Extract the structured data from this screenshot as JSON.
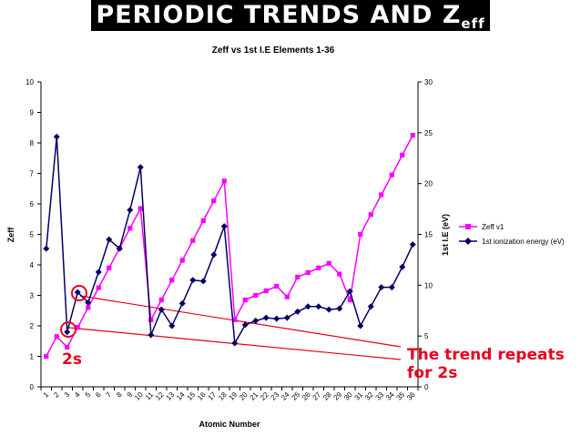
{
  "slide": {
    "title_main": "PERIODIC TRENDS AND Z",
    "title_sub": "eff",
    "annotation_2s": "2s",
    "annotation_trend_line1": "The trend repeats",
    "annotation_trend_line2": "for 2s",
    "accent_color": "#e8001c"
  },
  "chart_data": {
    "type": "line",
    "title": "Zeff vs 1st I.E Elements 1-36",
    "xlabel": "Atomic Number",
    "ylabel_left": "Zeff",
    "ylabel_right": "1st I.E (eV)",
    "ylim_left": [
      0,
      10
    ],
    "ylim_right": [
      0,
      30
    ],
    "yticks_left": [
      "0",
      "1",
      "2",
      "3",
      "4",
      "5",
      "6",
      "7",
      "8",
      "9",
      "10"
    ],
    "yticks_right": [
      "0",
      "5",
      "10",
      "15",
      "20",
      "25",
      "30"
    ],
    "categories": [
      "1",
      "2",
      "3",
      "4",
      "5",
      "6",
      "7",
      "8",
      "9",
      "10",
      "11",
      "12",
      "13",
      "14",
      "15",
      "16",
      "17",
      "18",
      "19",
      "20",
      "21",
      "22",
      "23",
      "24",
      "25",
      "26",
      "27",
      "28",
      "29",
      "30",
      "31",
      "32",
      "33",
      "34",
      "35",
      "36"
    ],
    "grid": false,
    "legend_position": "right",
    "series": [
      {
        "name": "Zeff v1",
        "axis": "left",
        "color": "#ff00ff",
        "marker": "square",
        "values": [
          1.0,
          1.65,
          1.3,
          1.95,
          2.6,
          3.25,
          3.9,
          4.55,
          5.2,
          5.85,
          2.2,
          2.85,
          3.5,
          4.15,
          4.8,
          5.45,
          6.1,
          6.75,
          2.2,
          2.85,
          3.0,
          3.15,
          3.3,
          2.95,
          3.6,
          3.75,
          3.9,
          4.05,
          3.7,
          2.85,
          5.0,
          5.65,
          6.3,
          6.95,
          7.6,
          8.25
        ]
      },
      {
        "name": "1st ionization energy (eV)",
        "axis": "right",
        "color": "#000066",
        "marker": "diamond",
        "values": [
          13.6,
          24.6,
          5.4,
          9.3,
          8.3,
          11.3,
          14.5,
          13.6,
          17.4,
          21.6,
          5.1,
          7.6,
          6.0,
          8.2,
          10.5,
          10.4,
          13.0,
          15.8,
          4.3,
          6.1,
          6.5,
          6.8,
          6.7,
          6.8,
          7.4,
          7.9,
          7.9,
          7.6,
          7.7,
          9.4,
          6.0,
          7.9,
          9.8,
          9.8,
          11.8,
          14.0
        ]
      }
    ]
  }
}
